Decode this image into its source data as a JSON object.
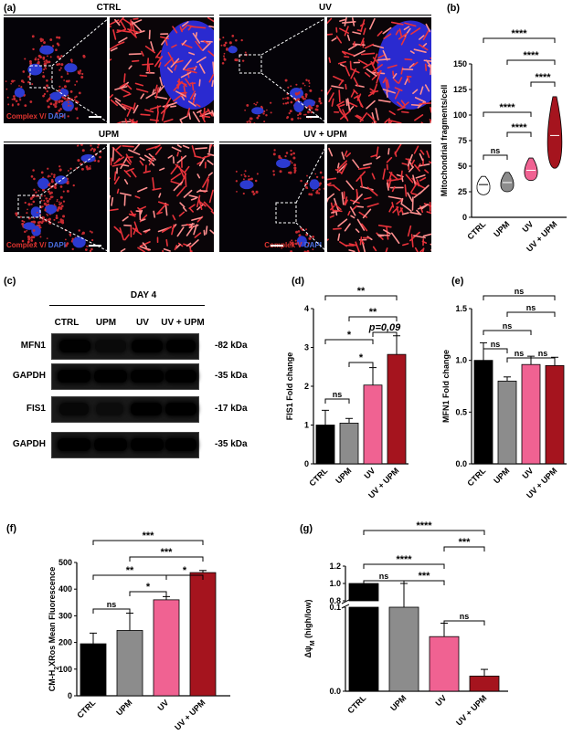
{
  "panels": {
    "a": "(a)",
    "b": "(b)",
    "c": "(c)",
    "d": "(d)",
    "e": "(e)",
    "f": "(f)",
    "g": "(g)"
  },
  "micro": {
    "headers": [
      "CTRL",
      "UV",
      "UPM",
      "UV + UPM"
    ],
    "label_part1": "Complex V",
    "label_sep": "/ ",
    "label_part2": "DAPI"
  },
  "blot": {
    "day": "DAY 4",
    "lanes": [
      "CTRL",
      "UPM",
      "UV",
      "UV + UPM"
    ],
    "rows": [
      {
        "name": "MFN1",
        "kda": "-82 kDa"
      },
      {
        "name": "GAPDH",
        "kda": "-35 kDa"
      },
      {
        "name": "FIS1",
        "kda": "-17 kDa"
      },
      {
        "name": "GAPDH",
        "kda": "-35 kDa"
      }
    ]
  },
  "colors": {
    "CTRL": "#000000",
    "UPM": "#8c8c8c",
    "UV": "#f06292",
    "UVUPM": "#a5141e"
  },
  "chart_data": [
    {
      "panel": "b",
      "type": "violin",
      "categories": [
        "CTRL",
        "UPM",
        "UV",
        "UV + UPM"
      ],
      "values": [
        32,
        34,
        46,
        80
      ],
      "ylabel": "Mitochondrial fragments/cell",
      "yticks": [
        0,
        25,
        50,
        75,
        100,
        125,
        150
      ],
      "ylim": [
        0,
        150
      ],
      "sig": [
        "****",
        "****",
        "****",
        "****",
        "****",
        "ns"
      ]
    },
    {
      "panel": "d",
      "type": "bar",
      "categories": [
        "CTRL",
        "UPM",
        "UV",
        "UV + UPM"
      ],
      "values": [
        1.0,
        1.05,
        2.03,
        2.82
      ],
      "errors": [
        0.38,
        0.12,
        0.45,
        0.48
      ],
      "ylabel": "FIS1 Fold change",
      "yticks": [
        0,
        1,
        2,
        3,
        4
      ],
      "ylim": [
        0,
        4
      ],
      "sig": [
        "**",
        "**",
        "*",
        "p=0,09",
        "*",
        "ns"
      ]
    },
    {
      "panel": "e",
      "type": "bar",
      "categories": [
        "CTRL",
        "UPM",
        "UV",
        "UV + UPM"
      ],
      "values": [
        1.0,
        0.8,
        0.96,
        0.95
      ],
      "errors": [
        0.17,
        0.04,
        0.08,
        0.08
      ],
      "ylabel": "MFN1 Fold change",
      "yticks": [
        0.0,
        0.5,
        1.0,
        1.5
      ],
      "yticklabels": [
        "0.0",
        "0.5",
        "1.0",
        "1.5"
      ],
      "ylim": [
        0,
        1.5
      ],
      "sig": [
        "ns",
        "ns",
        "ns",
        "ns",
        "ns",
        "ns"
      ]
    },
    {
      "panel": "f",
      "type": "bar",
      "categories": [
        "CTRL",
        "UPM",
        "UV",
        "UV + UPM"
      ],
      "values": [
        195,
        245,
        360,
        462
      ],
      "errors": [
        40,
        65,
        12,
        8
      ],
      "ylabel": "CM-H2XRos Mean Fluorescence",
      "ylabel_a": "CM-H",
      "ylabel_sub": "2",
      "ylabel_b": "XRos Mean Fluorescence",
      "yticks": [
        0,
        100,
        200,
        300,
        400,
        500
      ],
      "ylim": [
        0,
        500
      ],
      "sig": [
        "***",
        "***",
        "**",
        "*",
        "ns",
        "*"
      ]
    },
    {
      "panel": "g",
      "type": "bar",
      "categories": [
        "CTRL",
        "UPM",
        "UV",
        "UV + UPM"
      ],
      "values": [
        1.0,
        0.75,
        0.065,
        0.018
      ],
      "errors": [
        0,
        0.25,
        0.016,
        0.008
      ],
      "ylabel": "ΔΨM (high/low)",
      "ylabel_a": "Δψ",
      "ylabel_sub": "M",
      "ylabel_b": " (high/low)",
      "yticks": [
        0.0,
        0.1,
        0.8,
        1.0,
        1.2
      ],
      "yticklabels": [
        "0.0",
        "0.1",
        "0.8",
        "1.0",
        "1.2"
      ],
      "ylim": [
        0,
        1.2
      ],
      "axis_break": [
        0.1,
        0.8
      ],
      "sig": [
        "****",
        "***",
        "****",
        "***",
        "ns",
        "ns"
      ]
    }
  ]
}
